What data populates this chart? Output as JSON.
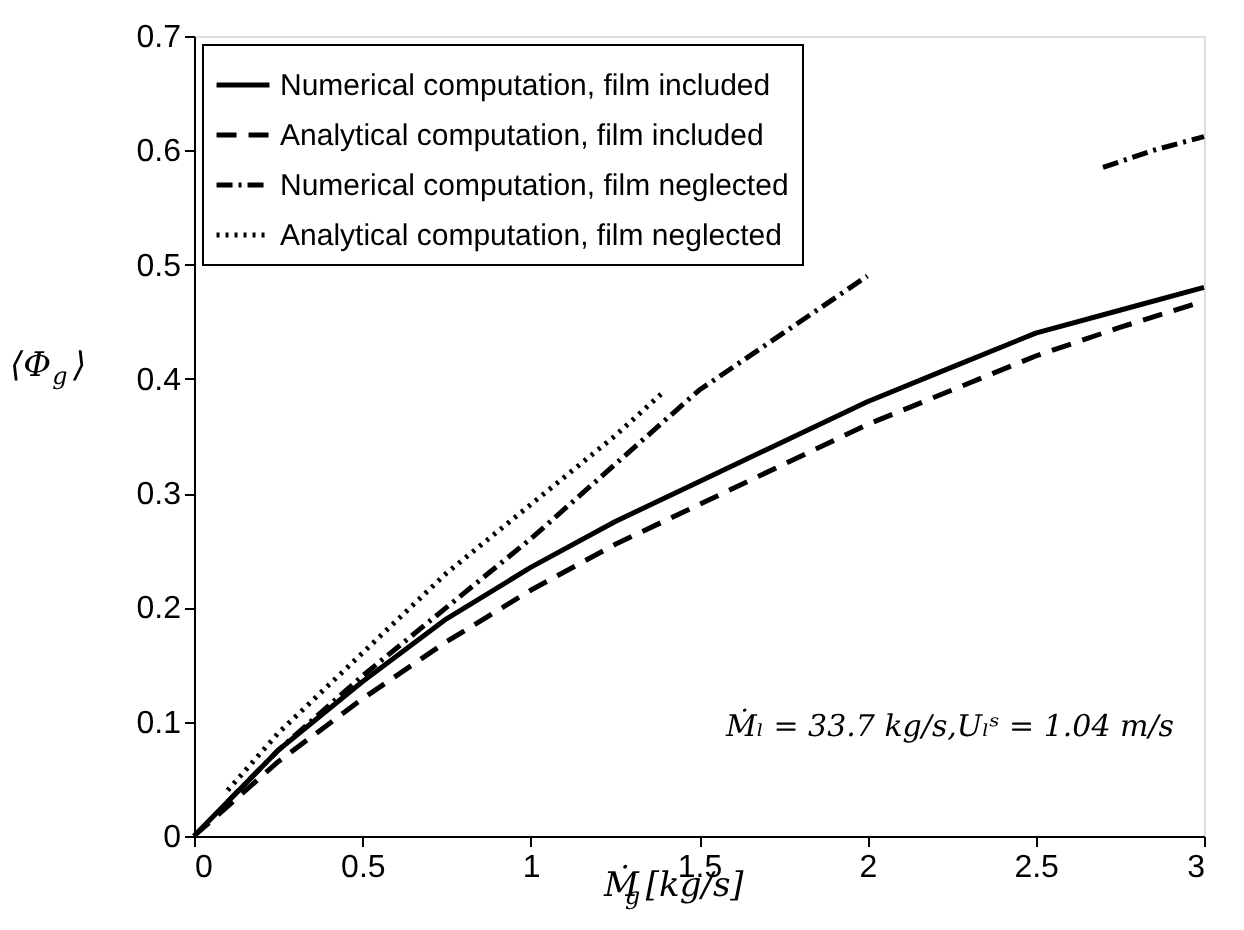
{
  "chart_data": {
    "type": "line",
    "xlabel": "Ṁ$_{g}$ [kg/s]",
    "ylabel": "⟨Φ$_{g}$⟩",
    "xlim": [
      0,
      3
    ],
    "xticks": [
      0,
      0.5,
      1,
      1.5,
      2,
      2.5,
      3
    ],
    "ylim": [
      0,
      0.7
    ],
    "yticks": [
      0,
      0.1,
      0.2,
      0.3,
      0.4,
      0.5,
      0.6,
      0.7
    ],
    "grid": false,
    "legend": "top left",
    "marker": "none",
    "annotations": [
      "Ṁₗ = 33.7 kg/s,Uₗˢ = 1.04 m/s"
    ],
    "series": [
      {
        "name": "Numerical computation, film included",
        "color": "#000000",
        "line_style": "solid",
        "x": [
          0,
          0.25,
          0.5,
          0.75,
          1,
          1.25,
          1.5,
          1.75,
          2,
          2.25,
          2.5,
          2.75,
          3
        ],
        "values": [
          0,
          0.075,
          0.135,
          0.19,
          0.235,
          0.275,
          0.31,
          0.345,
          0.38,
          0.41,
          0.44,
          0.46,
          0.48
        ]
      },
      {
        "name": "Analytical computation, film included",
        "color": "#000000",
        "line_style": "dashed",
        "x": [
          0,
          0.25,
          0.5,
          0.75,
          1,
          1.25,
          1.5,
          1.75,
          2,
          2.25,
          2.5,
          2.75,
          3
        ],
        "values": [
          0,
          0.065,
          0.12,
          0.17,
          0.215,
          0.255,
          0.29,
          0.325,
          0.36,
          0.39,
          0.42,
          0.445,
          0.468
        ]
      },
      {
        "name": "Numerical computation, film neglected",
        "color": "#000000",
        "line_style": "dashdot",
        "x": [
          0.1,
          0.25,
          0.5,
          0.75,
          1,
          1.25,
          1.5,
          1.75,
          2,
          2.3,
          2.7,
          2.85,
          3
        ],
        "values": [
          0.03,
          0.075,
          0.14,
          0.2,
          0.26,
          0.325,
          0.39,
          0.44,
          0.49,
          null,
          0.585,
          0.6,
          0.612
        ]
      },
      {
        "name": "Analytical computation, film neglected",
        "color": "#000000",
        "line_style": "dotted",
        "x": [
          0.1,
          0.25,
          0.5,
          0.75,
          1,
          1.25,
          1.4
        ],
        "values": [
          0.04,
          0.09,
          0.16,
          0.23,
          0.29,
          0.35,
          0.39
        ]
      }
    ]
  }
}
